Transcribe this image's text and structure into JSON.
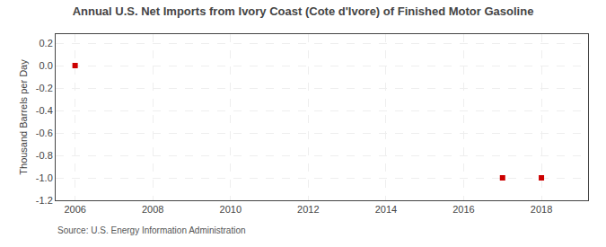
{
  "chart_data": {
    "type": "scatter",
    "title": "Annual U.S. Net Imports from Ivory Coast (Cote d'Ivore) of Finished Motor Gasoline",
    "y_label": "Thousand Barrels per Day",
    "annotations": [
      "Source: U.S. Energy Information Administration"
    ],
    "x": [
      2006,
      2017,
      2018
    ],
    "values": [
      0.0,
      -1.0,
      -1.0
    ],
    "color": "#cc0000",
    "marker": "square",
    "xlim": [
      2005.5,
      2019.2
    ],
    "ylim": [
      -1.2,
      0.28
    ],
    "xticks": [
      2006,
      2008,
      2010,
      2012,
      2014,
      2016,
      2018
    ],
    "yticks": [
      0.2,
      {
        "value": 0.0,
        "label": "0.0"
      },
      -0.2,
      -0.4,
      -0.6,
      -0.8,
      {
        "value": -1.0,
        "label": "-1.0"
      },
      -1.2
    ],
    "grid": true
  }
}
